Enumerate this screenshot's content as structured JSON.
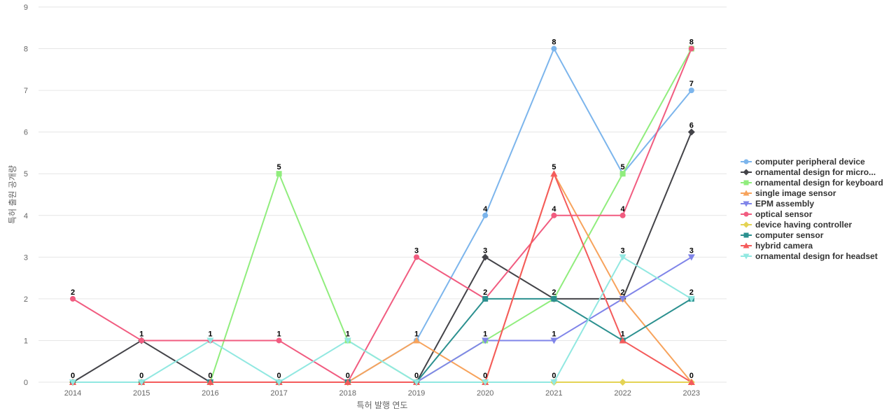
{
  "chart_data": {
    "type": "line",
    "title": "",
    "xlabel": "특허 발행 연도",
    "ylabel": "특허 출원 공개량",
    "categories": [
      "2014",
      "2015",
      "2016",
      "2017",
      "2018",
      "2019",
      "2020",
      "2021",
      "2022",
      "2023"
    ],
    "ylim": [
      0,
      9
    ],
    "yticks": [
      0,
      1,
      2,
      3,
      4,
      5,
      6,
      7,
      8,
      9
    ],
    "grid": true,
    "legend_position": "right",
    "series": [
      {
        "name": "computer peripheral device",
        "color": "#7cb5ec",
        "marker": "circle",
        "values": [
          0,
          0,
          0,
          0,
          0,
          1,
          4,
          8,
          5,
          7
        ]
      },
      {
        "name": "ornamental design for micro...",
        "color": "#434348",
        "marker": "diamond",
        "values": [
          0,
          1,
          0,
          0,
          0,
          0,
          3,
          2,
          2,
          6
        ]
      },
      {
        "name": "ornamental design for keyboard",
        "color": "#90ed7d",
        "marker": "square",
        "values": [
          0,
          0,
          0,
          5,
          1,
          0,
          1,
          2,
          5,
          8
        ]
      },
      {
        "name": "single image sensor",
        "color": "#f7a35c",
        "marker": "triangle",
        "values": [
          0,
          0,
          0,
          0,
          0,
          1,
          0,
          5,
          2,
          0
        ]
      },
      {
        "name": "EPM assembly",
        "color": "#8085e9",
        "marker": "triangle-down",
        "values": [
          0,
          0,
          0,
          0,
          0,
          0,
          1,
          1,
          2,
          3
        ]
      },
      {
        "name": "optical sensor",
        "color": "#f15c80",
        "marker": "circle",
        "values": [
          2,
          1,
          1,
          1,
          0,
          3,
          2,
          4,
          4,
          8
        ]
      },
      {
        "name": "device having controller",
        "color": "#e4d354",
        "marker": "diamond",
        "values": [
          0,
          0,
          0,
          0,
          0,
          0,
          0,
          0,
          0,
          0
        ]
      },
      {
        "name": "computer sensor",
        "color": "#2b908f",
        "marker": "square",
        "values": [
          0,
          0,
          0,
          0,
          0,
          0,
          2,
          2,
          1,
          2
        ]
      },
      {
        "name": "hybrid camera",
        "color": "#f45b5b",
        "marker": "triangle",
        "values": [
          0,
          0,
          0,
          0,
          0,
          0,
          0,
          5,
          1,
          0
        ]
      },
      {
        "name": "ornamental design for headset",
        "color": "#91e8e1",
        "marker": "triangle-down",
        "values": [
          0,
          0,
          1,
          0,
          1,
          0,
          0,
          0,
          3,
          2
        ]
      }
    ],
    "data_labels": [
      {
        "category": "2014",
        "value": 2,
        "text": "2"
      },
      {
        "category": "2014",
        "value": 0,
        "text": "0"
      },
      {
        "category": "2015",
        "value": 1,
        "text": "1"
      },
      {
        "category": "2015",
        "value": 0,
        "text": "0"
      },
      {
        "category": "2016",
        "value": 1,
        "text": "1"
      },
      {
        "category": "2016",
        "value": 0,
        "text": "0"
      },
      {
        "category": "2017",
        "value": 5,
        "text": "5"
      },
      {
        "category": "2017",
        "value": 1,
        "text": "1"
      },
      {
        "category": "2017",
        "value": 0,
        "text": "0"
      },
      {
        "category": "2018",
        "value": 1,
        "text": "1"
      },
      {
        "category": "2018",
        "value": 0,
        "text": "0"
      },
      {
        "category": "2019",
        "value": 3,
        "text": "3"
      },
      {
        "category": "2019",
        "value": 1,
        "text": "1"
      },
      {
        "category": "2019",
        "value": 0,
        "text": "0"
      },
      {
        "category": "2020",
        "value": 4,
        "text": "4"
      },
      {
        "category": "2020",
        "value": 3,
        "text": "3"
      },
      {
        "category": "2020",
        "value": 2,
        "text": "2"
      },
      {
        "category": "2020",
        "value": 1,
        "text": "1"
      },
      {
        "category": "2020",
        "value": 0,
        "text": "0"
      },
      {
        "category": "2021",
        "value": 8,
        "text": "8"
      },
      {
        "category": "2021",
        "value": 5,
        "text": "5"
      },
      {
        "category": "2021",
        "value": 4,
        "text": "4"
      },
      {
        "category": "2021",
        "value": 2,
        "text": "2"
      },
      {
        "category": "2021",
        "value": 1,
        "text": "1"
      },
      {
        "category": "2021",
        "value": 0,
        "text": "0"
      },
      {
        "category": "2022",
        "value": 5,
        "text": "5"
      },
      {
        "category": "2022",
        "value": 4,
        "text": "4"
      },
      {
        "category": "2022",
        "value": 3,
        "text": "3"
      },
      {
        "category": "2022",
        "value": 2,
        "text": "2"
      },
      {
        "category": "2022",
        "value": 1,
        "text": "1"
      },
      {
        "category": "2023",
        "value": 8,
        "text": "8"
      },
      {
        "category": "2023",
        "value": 7,
        "text": "7"
      },
      {
        "category": "2023",
        "value": 6,
        "text": "6"
      },
      {
        "category": "2023",
        "value": 3,
        "text": "3"
      },
      {
        "category": "2023",
        "value": 2,
        "text": "2"
      },
      {
        "category": "2023",
        "value": 0,
        "text": "0"
      }
    ]
  }
}
